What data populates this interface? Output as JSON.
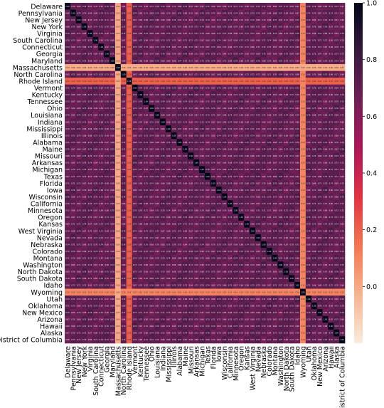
{
  "chart_data": {
    "type": "heatmap",
    "title": "",
    "xlabel": "",
    "ylabel": "",
    "labels": [
      "Delaware",
      "Pennsylvania",
      "New Jersey",
      "New York",
      "Virginia",
      "South Carolina",
      "Connecticut",
      "Georgia",
      "Maryland",
      "Massachusetts",
      "North Carolina",
      "Rhode Island",
      "Vermont",
      "Kentucky",
      "Tennessee",
      "Ohio",
      "Louisiana",
      "Indiana",
      "Mississippi",
      "Illinois",
      "Alabama",
      "Maine",
      "Missouri",
      "Arkansas",
      "Michigan",
      "Texas",
      "Florida",
      "Iowa",
      "Wisconsin",
      "California",
      "Minnesota",
      "Oregon",
      "Kansas",
      "West Virginia",
      "Nevada",
      "Nebraska",
      "Colorado",
      "Montana",
      "Washington",
      "North Dakota",
      "South Dakota",
      "Idaho",
      "Wyoming",
      "Utah",
      "Oklahoma",
      "New Mexico",
      "Arizona",
      "Hawaii",
      "Alaska",
      "District of Columbia"
    ],
    "value_range": [
      -0.2,
      1.0
    ],
    "diagonal_value": 1.0,
    "typical_offdiagonal_value": 0.7,
    "low_correlation_rows": {
      "Massachusetts": 0.0,
      "Rhode Island": 0.2,
      "Wyoming": 0.1
    },
    "low_correlation_cols": {
      "Massachusetts": 0.0,
      "Rhode Island": 0.2,
      "Wyoming": 0.1
    },
    "cell_text_format": "0.00",
    "colorbar": {
      "ticks": [
        "0.0",
        "0.2",
        "0.4",
        "0.6",
        "0.8",
        "1.0"
      ],
      "colormap": "rocket_r",
      "color_stops": [
        "#faebdd",
        "#f6b48f",
        "#f37651",
        "#e13342",
        "#ad1759",
        "#701f57",
        "#35193e",
        "#03051a"
      ]
    }
  }
}
